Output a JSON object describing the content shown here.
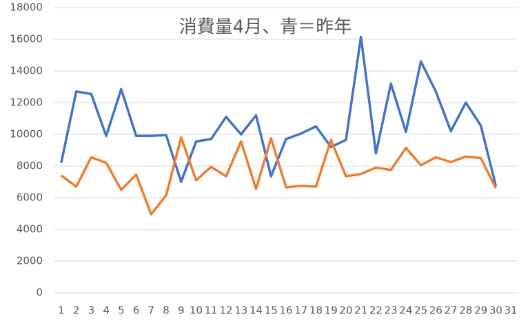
{
  "chart_data": {
    "type": "line",
    "title": "消費量4月、青＝昨年",
    "categories": [
      "1",
      "2",
      "3",
      "4",
      "5",
      "6",
      "7",
      "8",
      "9",
      "10",
      "11",
      "12",
      "13",
      "14",
      "15",
      "16",
      "17",
      "18",
      "19",
      "20",
      "21",
      "22",
      "23",
      "24",
      "25",
      "26",
      "27",
      "28",
      "29",
      "30",
      "31"
    ],
    "series": [
      {
        "color": "#4472c4",
        "values": [
          8200,
          12700,
          12550,
          9900,
          12850,
          9900,
          9900,
          9950,
          7000,
          9550,
          9700,
          11100,
          10000,
          11200,
          7350,
          9700,
          10050,
          10500,
          9200,
          9650,
          16150,
          8800,
          13200,
          10150,
          14600,
          12700,
          10200,
          12000,
          10550,
          6750,
          null
        ]
      },
      {
        "color": "#ed7d31",
        "values": [
          7400,
          6700,
          8550,
          8200,
          6500,
          7450,
          4950,
          6150,
          9800,
          7100,
          7950,
          7350,
          9550,
          6550,
          9750,
          6650,
          6750,
          6700,
          9650,
          7350,
          7500,
          7900,
          7750,
          9150,
          8050,
          8550,
          8250,
          8600,
          8500,
          6600,
          null
        ]
      }
    ],
    "ylim": [
      0,
      18000
    ],
    "yticks": [
      0,
      2000,
      4000,
      6000,
      8000,
      10000,
      12000,
      14000,
      16000,
      18000
    ],
    "grid": true
  }
}
